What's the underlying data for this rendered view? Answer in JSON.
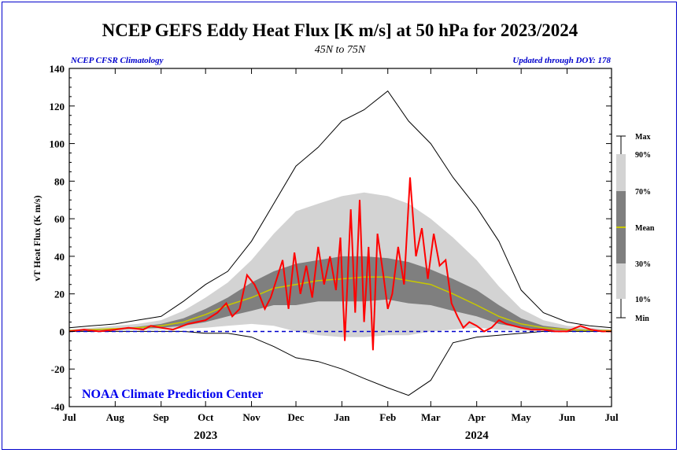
{
  "chart_data": {
    "type": "area",
    "title": "NCEP GEFS Eddy Heat Flux [K m/s] at 50 hPa for 2023/2024",
    "subtitle": "45N to 75N",
    "left_note": "NCEP CFSR Climatology",
    "right_note": "Updated through DOY: 178",
    "credit": "NOAA Climate Prediction Center",
    "ylabel": "vT Heat Flux (K m/s)",
    "ylim": [
      -40,
      140
    ],
    "yticks": [
      -40,
      -20,
      0,
      20,
      40,
      60,
      80,
      100,
      120,
      140
    ],
    "xticks": [
      {
        "label": "Jul",
        "day": 0
      },
      {
        "label": "Aug",
        "day": 31
      },
      {
        "label": "Sep",
        "day": 62
      },
      {
        "label": "Oct",
        "day": 92
      },
      {
        "label": "Nov",
        "day": 123
      },
      {
        "label": "Dec",
        "day": 153
      },
      {
        "label": "Jan",
        "day": 184
      },
      {
        "label": "Feb",
        "day": 215
      },
      {
        "label": "Mar",
        "day": 244
      },
      {
        "label": "Apr",
        "day": 275
      },
      {
        "label": "May",
        "day": 305
      },
      {
        "label": "Jun",
        "day": 336
      },
      {
        "label": "Jul",
        "day": 366
      }
    ],
    "year_labels": [
      {
        "label": "2023",
        "day": 92
      },
      {
        "label": "2024",
        "day": 275
      }
    ],
    "xlim": [
      0,
      366
    ],
    "legend": {
      "labels": [
        "Max",
        "90%",
        "70%",
        "Mean",
        "30%",
        "10%",
        "Min"
      ]
    },
    "climatology": {
      "x": [
        0,
        15,
        31,
        46,
        62,
        77,
        92,
        107,
        123,
        138,
        153,
        168,
        184,
        199,
        215,
        229,
        244,
        259,
        275,
        290,
        305,
        320,
        336,
        351,
        366
      ],
      "max": [
        2,
        3,
        4,
        6,
        8,
        16,
        25,
        32,
        48,
        68,
        88,
        98,
        112,
        118,
        128,
        112,
        100,
        82,
        66,
        48,
        22,
        10,
        5,
        3,
        2
      ],
      "p90": [
        1,
        2,
        3,
        4,
        6,
        11,
        18,
        26,
        38,
        52,
        64,
        68,
        72,
        74,
        72,
        68,
        60,
        50,
        38,
        24,
        12,
        6,
        3,
        2,
        1
      ],
      "p70": [
        0.5,
        1,
        1.5,
        2.5,
        4,
        7,
        12,
        18,
        26,
        32,
        36,
        38,
        40,
        40,
        39,
        37,
        33,
        28,
        22,
        14,
        7,
        3,
        1.5,
        1,
        0.5
      ],
      "mean": [
        0.5,
        1,
        1.5,
        2,
        3,
        5,
        9,
        14,
        18,
        23,
        25,
        27,
        28,
        29,
        29,
        27,
        25,
        20,
        14,
        8,
        4,
        2,
        1,
        0.5,
        0.5
      ],
      "p30": [
        0,
        0.5,
        1,
        1.5,
        2,
        3,
        5,
        8,
        11,
        14,
        14,
        16,
        16,
        16,
        17,
        15,
        14,
        11,
        8,
        4,
        2,
        1,
        0.5,
        0,
        0
      ],
      "p10": [
        0,
        0,
        0.5,
        1,
        1,
        1.5,
        2,
        3,
        4,
        3,
        0,
        -2,
        -3,
        -3,
        -2,
        -2,
        0,
        1,
        2,
        1,
        0.5,
        0,
        0,
        0,
        0
      ],
      "min": [
        0,
        0,
        0,
        0,
        0,
        0,
        -1,
        -1,
        -3,
        -8,
        -14,
        -16,
        -20,
        -25,
        -30,
        -34,
        -26,
        -6,
        -3,
        -2,
        -1,
        0,
        0,
        0,
        0
      ]
    },
    "series": [
      {
        "name": "2023/2024",
        "color": "#ff0000",
        "x": [
          0,
          10,
          20,
          31,
          40,
          50,
          55,
          62,
          70,
          80,
          92,
          100,
          106,
          110,
          115,
          120,
          125,
          128,
          132,
          136,
          140,
          144,
          148,
          152,
          156,
          160,
          164,
          168,
          172,
          176,
          180,
          183,
          186,
          190,
          193,
          196,
          199,
          202,
          205,
          208,
          212,
          215,
          218,
          222,
          226,
          230,
          234,
          238,
          242,
          246,
          250,
          254,
          258,
          262,
          266,
          270,
          275,
          280,
          285,
          290,
          295,
          300,
          305,
          312,
          320,
          328,
          336,
          345,
          352,
          360,
          366
        ],
        "y": [
          0,
          1,
          0,
          1,
          2,
          1,
          3,
          2,
          1,
          4,
          6,
          10,
          15,
          8,
          12,
          30,
          25,
          20,
          12,
          18,
          28,
          38,
          12,
          42,
          20,
          35,
          18,
          45,
          25,
          40,
          22,
          50,
          -5,
          65,
          10,
          70,
          5,
          45,
          -10,
          52,
          30,
          12,
          20,
          45,
          25,
          82,
          40,
          55,
          28,
          52,
          35,
          38,
          15,
          8,
          2,
          5,
          3,
          0,
          2,
          6,
          4,
          3,
          2,
          1,
          1,
          0,
          0,
          3,
          1,
          0,
          0
        ]
      }
    ]
  }
}
